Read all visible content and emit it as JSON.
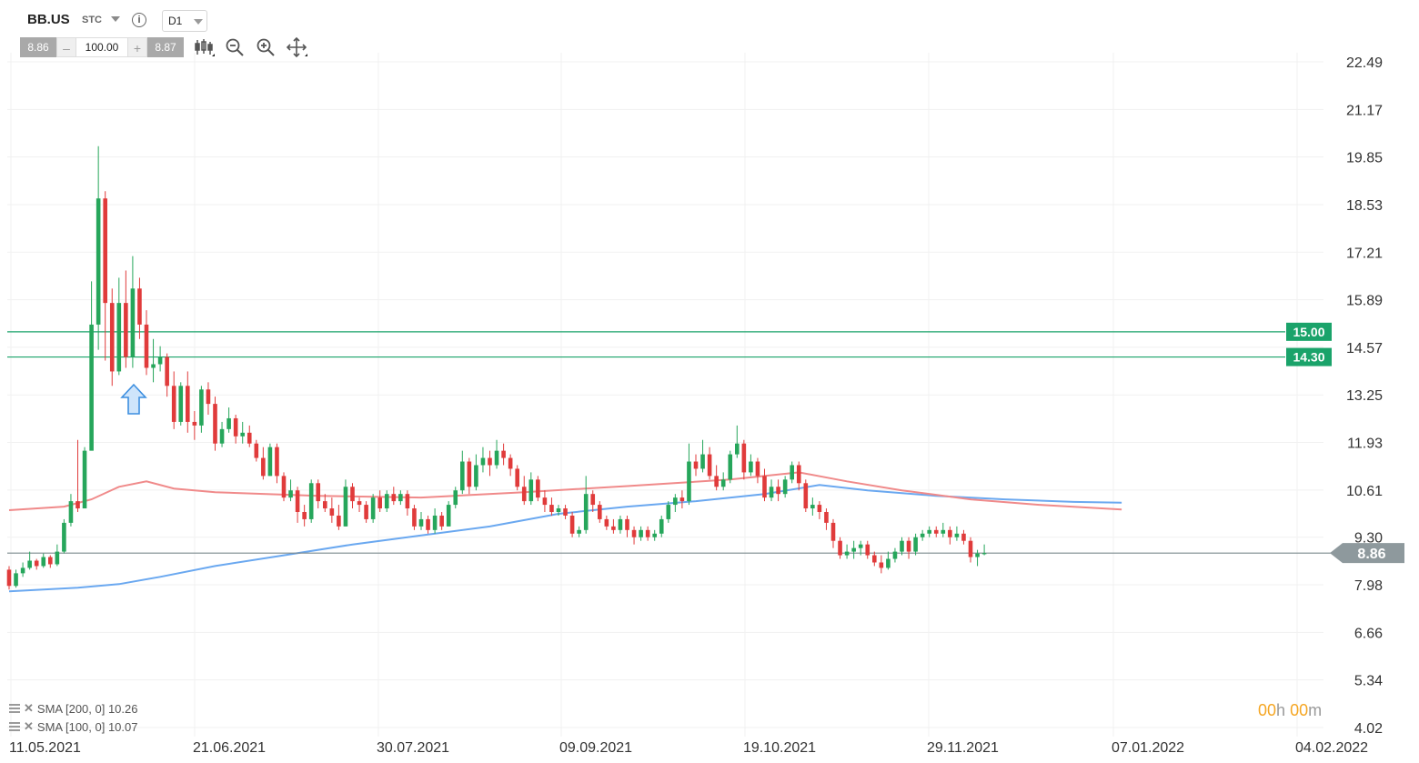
{
  "header": {
    "symbol": "BB.US",
    "instrument_type": "STC",
    "timeframe": "D1",
    "info_icon": "info-icon"
  },
  "trade_panel": {
    "bid": "8.86",
    "minus": "–",
    "volume": "100.00",
    "plus": "+",
    "ask": "8.87"
  },
  "tools": [
    "chart-type-icon",
    "zoom-out-icon",
    "zoom-in-icon",
    "move-icon"
  ],
  "indicators": [
    {
      "label": "SMA [200, 0] 10.26"
    },
    {
      "label": "SMA [100, 0] 10.07"
    }
  ],
  "countdown": {
    "h_val": "00",
    "h_unit": "h",
    "m_val": "00",
    "m_unit": "m"
  },
  "colors": {
    "up": "#26a65b",
    "down": "#e03b3b",
    "sma200": "#6aa8f0",
    "sma100": "#f08a8a",
    "level": "#1aa36a",
    "current": "#8e999d"
  },
  "chart_data": {
    "type": "candlestick",
    "x_tick_labels": [
      "11.05.2021",
      "21.06.2021",
      "30.07.2021",
      "09.09.2021",
      "19.10.2021",
      "29.11.2021",
      "07.01.2022",
      "04.02.2022"
    ],
    "y_tick_labels": [
      "22.49",
      "21.17",
      "19.85",
      "18.53",
      "17.21",
      "15.89",
      "14.57",
      "13.25",
      "11.93",
      "10.61",
      "9.30",
      "7.98",
      "6.66",
      "5.34",
      "4.02"
    ],
    "ylim": [
      4.02,
      22.49
    ],
    "horizontal_levels": [
      {
        "value": 15.0,
        "label": "15.00"
      },
      {
        "value": 14.3,
        "label": "14.30"
      }
    ],
    "current_price": {
      "value": 8.86,
      "label": "8.86"
    },
    "annotation": "buy-arrow",
    "candles": [
      [
        8.4,
        7.95,
        8.5,
        7.85
      ],
      [
        7.95,
        8.3,
        8.4,
        7.9
      ],
      [
        8.3,
        8.45,
        8.6,
        8.2
      ],
      [
        8.45,
        8.65,
        8.9,
        8.4
      ],
      [
        8.65,
        8.5,
        8.7,
        8.4
      ],
      [
        8.5,
        8.75,
        8.85,
        8.45
      ],
      [
        8.75,
        8.55,
        8.8,
        8.45
      ],
      [
        8.55,
        8.9,
        9.1,
        8.5
      ],
      [
        8.9,
        9.7,
        9.8,
        8.85
      ],
      [
        9.7,
        10.3,
        10.5,
        9.6
      ],
      [
        10.3,
        10.1,
        12.0,
        10.0
      ],
      [
        10.1,
        11.7,
        11.8,
        10.2
      ],
      [
        11.7,
        15.2,
        16.4,
        12.5
      ],
      [
        15.2,
        18.7,
        20.15,
        14.5
      ],
      [
        18.7,
        15.8,
        18.9,
        14.2
      ],
      [
        15.8,
        13.9,
        16.2,
        13.5
      ],
      [
        13.9,
        15.8,
        16.5,
        13.8
      ],
      [
        15.8,
        14.3,
        16.7,
        14.0
      ],
      [
        14.3,
        16.2,
        17.1,
        14.0
      ],
      [
        16.2,
        15.2,
        16.5,
        14.8
      ],
      [
        15.2,
        14.0,
        15.6,
        13.8
      ],
      [
        14.0,
        14.1,
        14.8,
        13.6
      ],
      [
        14.1,
        14.3,
        14.6,
        13.9
      ],
      [
        14.3,
        13.5,
        14.4,
        13.2
      ],
      [
        13.5,
        12.5,
        13.9,
        12.3
      ],
      [
        12.5,
        13.5,
        13.6,
        12.4
      ],
      [
        13.5,
        12.5,
        13.9,
        12.2
      ],
      [
        12.5,
        12.4,
        12.8,
        12.0
      ],
      [
        12.4,
        13.4,
        13.5,
        12.2
      ],
      [
        13.4,
        13.0,
        13.6,
        12.7
      ],
      [
        13.0,
        11.9,
        13.2,
        11.7
      ],
      [
        11.9,
        12.3,
        12.5,
        11.8
      ],
      [
        12.3,
        12.6,
        12.9,
        12.2
      ],
      [
        12.6,
        12.1,
        12.7,
        11.9
      ],
      [
        12.1,
        12.2,
        12.5,
        11.9
      ],
      [
        12.2,
        11.9,
        12.4,
        11.8
      ],
      [
        11.9,
        11.5,
        12.0,
        11.4
      ],
      [
        11.5,
        11.0,
        11.8,
        10.9
      ],
      [
        11.0,
        11.8,
        11.9,
        11.0
      ],
      [
        11.8,
        11.0,
        11.9,
        10.8
      ],
      [
        11.0,
        10.4,
        11.1,
        10.3
      ],
      [
        10.4,
        10.6,
        10.9,
        10.3
      ],
      [
        10.6,
        10.0,
        10.7,
        9.7
      ],
      [
        10.0,
        9.8,
        10.2,
        9.6
      ],
      [
        9.8,
        10.8,
        10.9,
        9.7
      ],
      [
        10.8,
        10.3,
        10.9,
        10.1
      ],
      [
        10.3,
        10.1,
        10.5,
        10.0
      ],
      [
        10.1,
        9.9,
        10.4,
        9.7
      ],
      [
        9.9,
        9.6,
        10.2,
        9.5
      ],
      [
        9.6,
        10.7,
        10.9,
        9.6
      ],
      [
        10.7,
        10.3,
        10.8,
        10.1
      ],
      [
        10.3,
        10.2,
        10.4,
        10.0
      ],
      [
        10.2,
        9.8,
        10.3,
        9.7
      ],
      [
        9.8,
        10.4,
        10.5,
        9.7
      ],
      [
        10.4,
        10.1,
        10.6,
        10.0
      ],
      [
        10.1,
        10.5,
        10.6,
        10.0
      ],
      [
        10.5,
        10.3,
        10.7,
        10.2
      ],
      [
        10.3,
        10.5,
        10.6,
        10.2
      ],
      [
        10.5,
        10.1,
        10.6,
        9.9
      ],
      [
        10.1,
        9.6,
        10.2,
        9.5
      ],
      [
        9.6,
        9.8,
        10.0,
        9.5
      ],
      [
        9.8,
        9.5,
        9.9,
        9.4
      ],
      [
        9.5,
        9.9,
        10.1,
        9.4
      ],
      [
        9.9,
        9.6,
        10.0,
        9.5
      ],
      [
        9.6,
        10.2,
        10.3,
        9.6
      ],
      [
        10.2,
        10.6,
        10.7,
        10.1
      ],
      [
        10.6,
        11.4,
        11.7,
        10.5
      ],
      [
        11.4,
        10.7,
        11.5,
        10.5
      ],
      [
        10.7,
        11.3,
        11.6,
        10.6
      ],
      [
        11.3,
        11.5,
        11.8,
        11.1
      ],
      [
        11.5,
        11.3,
        11.7,
        11.0
      ],
      [
        11.3,
        11.7,
        12.0,
        11.2
      ],
      [
        11.7,
        11.5,
        11.9,
        11.3
      ],
      [
        11.5,
        11.2,
        11.6,
        11.0
      ],
      [
        11.2,
        10.7,
        11.3,
        10.6
      ],
      [
        10.7,
        10.3,
        11.0,
        10.2
      ],
      [
        10.3,
        10.9,
        11.1,
        10.2
      ],
      [
        10.9,
        10.4,
        11.0,
        10.3
      ],
      [
        10.4,
        10.2,
        10.6,
        10.0
      ],
      [
        10.2,
        10.0,
        10.4,
        9.9
      ],
      [
        10.0,
        10.1,
        10.2,
        9.9
      ],
      [
        10.1,
        9.9,
        10.2,
        9.8
      ],
      [
        9.9,
        9.4,
        10.0,
        9.3
      ],
      [
        9.4,
        9.5,
        9.6,
        9.3
      ],
      [
        9.5,
        10.5,
        11.0,
        9.4
      ],
      [
        10.5,
        10.2,
        10.6,
        10.0
      ],
      [
        10.2,
        9.8,
        10.3,
        9.7
      ],
      [
        9.8,
        9.6,
        9.9,
        9.5
      ],
      [
        9.6,
        9.5,
        9.8,
        9.4
      ],
      [
        9.5,
        9.8,
        9.9,
        9.4
      ],
      [
        9.8,
        9.5,
        9.9,
        9.3
      ],
      [
        9.5,
        9.3,
        9.6,
        9.1
      ],
      [
        9.3,
        9.5,
        9.6,
        9.2
      ],
      [
        9.5,
        9.3,
        9.6,
        9.2
      ],
      [
        9.3,
        9.4,
        9.5,
        9.2
      ],
      [
        9.4,
        9.8,
        9.9,
        9.3
      ],
      [
        9.8,
        10.2,
        10.3,
        9.7
      ],
      [
        10.2,
        10.4,
        10.5,
        10.0
      ],
      [
        10.4,
        10.3,
        10.6,
        10.1
      ],
      [
        10.3,
        11.4,
        11.9,
        10.2
      ],
      [
        11.4,
        11.2,
        11.6,
        11.0
      ],
      [
        11.2,
        11.6,
        12.0,
        11.1
      ],
      [
        11.6,
        11.0,
        11.8,
        10.9
      ],
      [
        11.0,
        10.7,
        11.3,
        10.6
      ],
      [
        10.7,
        10.9,
        11.1,
        10.6
      ],
      [
        10.9,
        11.6,
        11.7,
        10.8
      ],
      [
        11.6,
        11.9,
        12.4,
        11.5
      ],
      [
        11.9,
        11.1,
        12.0,
        10.9
      ],
      [
        11.1,
        11.4,
        11.6,
        11.0
      ],
      [
        11.4,
        11.0,
        11.5,
        10.8
      ],
      [
        11.0,
        10.4,
        11.2,
        10.3
      ],
      [
        10.4,
        10.7,
        10.9,
        10.3
      ],
      [
        10.7,
        10.5,
        10.9,
        10.3
      ],
      [
        10.5,
        10.9,
        11.0,
        10.4
      ],
      [
        10.9,
        11.3,
        11.4,
        10.8
      ],
      [
        11.3,
        10.8,
        11.4,
        10.6
      ],
      [
        10.8,
        10.1,
        10.9,
        10.0
      ],
      [
        10.1,
        10.2,
        10.4,
        9.9
      ],
      [
        10.2,
        10.0,
        10.3,
        9.8
      ],
      [
        10.0,
        9.7,
        10.1,
        9.5
      ],
      [
        9.7,
        9.2,
        9.8,
        9.0
      ],
      [
        9.2,
        8.8,
        9.3,
        8.7
      ],
      [
        8.8,
        8.9,
        9.1,
        8.7
      ],
      [
        8.9,
        9.0,
        9.2,
        8.7
      ],
      [
        9.0,
        9.1,
        9.2,
        8.8
      ],
      [
        9.1,
        8.8,
        9.2,
        8.7
      ],
      [
        8.8,
        8.6,
        8.9,
        8.5
      ],
      [
        8.6,
        8.45,
        8.8,
        8.3
      ],
      [
        8.45,
        8.7,
        8.9,
        8.4
      ],
      [
        8.7,
        8.9,
        9.0,
        8.6
      ],
      [
        8.9,
        9.2,
        9.3,
        8.8
      ],
      [
        9.2,
        8.9,
        9.3,
        8.7
      ],
      [
        8.9,
        9.3,
        9.4,
        8.8
      ],
      [
        9.3,
        9.4,
        9.5,
        9.2
      ],
      [
        9.4,
        9.5,
        9.6,
        9.3
      ],
      [
        9.5,
        9.4,
        9.6,
        9.3
      ],
      [
        9.4,
        9.5,
        9.7,
        9.3
      ],
      [
        9.5,
        9.3,
        9.6,
        9.1
      ],
      [
        9.3,
        9.4,
        9.6,
        9.2
      ],
      [
        9.4,
        9.2,
        9.5,
        9.1
      ],
      [
        9.2,
        8.75,
        9.3,
        8.6
      ],
      [
        8.75,
        8.85,
        8.95,
        8.5
      ],
      [
        8.85,
        8.86,
        9.1,
        8.8
      ]
    ],
    "series": [
      {
        "name": "SMA [200, 0]",
        "color": "#6aa8f0",
        "values": [
          [
            0,
            7.8
          ],
          [
            5,
            7.85
          ],
          [
            10,
            7.9
          ],
          [
            16,
            8.0
          ],
          [
            22,
            8.2
          ],
          [
            30,
            8.5
          ],
          [
            40,
            8.8
          ],
          [
            50,
            9.1
          ],
          [
            60,
            9.35
          ],
          [
            70,
            9.6
          ],
          [
            80,
            9.95
          ],
          [
            90,
            10.15
          ],
          [
            100,
            10.3
          ],
          [
            110,
            10.5
          ],
          [
            118,
            10.75
          ],
          [
            125,
            10.6
          ],
          [
            135,
            10.45
          ],
          [
            145,
            10.35
          ],
          [
            155,
            10.28
          ],
          [
            162,
            10.26
          ]
        ]
      },
      {
        "name": "SMA [100, 0]",
        "color": "#f08a8a",
        "values": [
          [
            0,
            10.05
          ],
          [
            8,
            10.15
          ],
          [
            12,
            10.35
          ],
          [
            16,
            10.7
          ],
          [
            20,
            10.85
          ],
          [
            24,
            10.65
          ],
          [
            30,
            10.55
          ],
          [
            45,
            10.45
          ],
          [
            60,
            10.4
          ],
          [
            75,
            10.55
          ],
          [
            90,
            10.72
          ],
          [
            105,
            10.9
          ],
          [
            115,
            11.1
          ],
          [
            122,
            10.85
          ],
          [
            130,
            10.6
          ],
          [
            140,
            10.35
          ],
          [
            150,
            10.2
          ],
          [
            162,
            10.07
          ]
        ]
      }
    ]
  }
}
